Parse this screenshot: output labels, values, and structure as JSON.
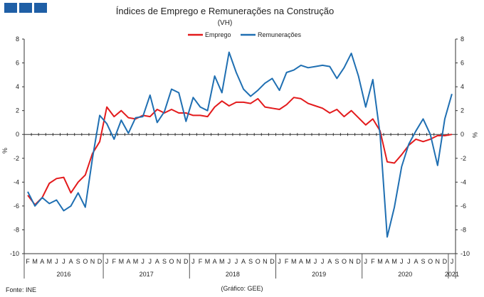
{
  "title": "Índices de Emprego  e Remunerações na Construção",
  "subtitle": "(VH)",
  "source_left": "Fonte: INE",
  "source_center": "(Gráfico: GEE)",
  "chart_data": {
    "type": "line",
    "ylabel_left": "%",
    "ylabel_right": "%",
    "ylim": [
      -10,
      8
    ],
    "yticks": [
      -10,
      -8,
      -6,
      -4,
      -2,
      0,
      2,
      4,
      6,
      8
    ],
    "grid": false,
    "legend_position": "top",
    "months": [
      "F",
      "M",
      "A",
      "M",
      "J",
      "J",
      "A",
      "S",
      "O",
      "N",
      "D",
      "J",
      "F",
      "M",
      "A",
      "M",
      "J",
      "J",
      "A",
      "S",
      "O",
      "N",
      "D",
      "J",
      "F",
      "M",
      "A",
      "M",
      "J",
      "J",
      "A",
      "S",
      "O",
      "N",
      "D",
      "J",
      "F",
      "M",
      "A",
      "M",
      "J",
      "J",
      "A",
      "S",
      "O",
      "N",
      "D",
      "J",
      "F",
      "M",
      "A",
      "M",
      "J",
      "J",
      "A",
      "S",
      "O",
      "N",
      "D",
      "J"
    ],
    "years": [
      {
        "label": "2016",
        "start": 0,
        "end": 10
      },
      {
        "label": "2017",
        "start": 11,
        "end": 22
      },
      {
        "label": "2018",
        "start": 23,
        "end": 34
      },
      {
        "label": "2019",
        "start": 35,
        "end": 46
      },
      {
        "label": "2020",
        "start": 47,
        "end": 58
      },
      {
        "label": "2021",
        "start": 59,
        "end": 59
      }
    ],
    "series": [
      {
        "name": "Emprego",
        "color": "#e31a1c",
        "values": [
          -5.1,
          -5.9,
          -5.3,
          -4.1,
          -3.7,
          -3.6,
          -4.9,
          -4.0,
          -3.4,
          -1.6,
          -0.6,
          2.3,
          1.5,
          2.0,
          1.4,
          1.3,
          1.6,
          1.5,
          2.1,
          1.8,
          2.1,
          1.8,
          1.8,
          1.6,
          1.6,
          1.5,
          2.3,
          2.8,
          2.4,
          2.7,
          2.7,
          2.6,
          3.0,
          2.3,
          2.2,
          2.1,
          2.5,
          3.1,
          3.0,
          2.6,
          2.4,
          2.2,
          1.8,
          2.1,
          1.5,
          2.0,
          1.4,
          0.8,
          1.3,
          0.3,
          -2.3,
          -2.4,
          -1.7,
          -0.9,
          -0.4,
          -0.6,
          -0.4,
          -0.1,
          -0.1,
          0.0
        ]
      },
      {
        "name": "Remunerações",
        "color": "#1f6fb2",
        "values": [
          -4.8,
          -6.0,
          -5.3,
          -5.8,
          -5.5,
          -6.4,
          -6.0,
          -4.9,
          -6.1,
          -2.0,
          1.6,
          0.9,
          -0.4,
          1.2,
          0.1,
          1.4,
          1.5,
          3.3,
          1.0,
          1.9,
          3.8,
          3.5,
          1.1,
          3.1,
          2.3,
          2.0,
          4.9,
          3.5,
          6.9,
          5.2,
          3.8,
          3.2,
          3.7,
          4.3,
          4.7,
          3.7,
          5.2,
          5.4,
          5.8,
          5.6,
          5.7,
          5.8,
          5.7,
          4.7,
          5.6,
          6.8,
          4.9,
          2.3,
          4.6,
          0.0,
          -8.6,
          -6.1,
          -2.7,
          -0.8,
          0.3,
          1.3,
          0.0,
          -2.6,
          1.3,
          3.4
        ]
      }
    ]
  }
}
